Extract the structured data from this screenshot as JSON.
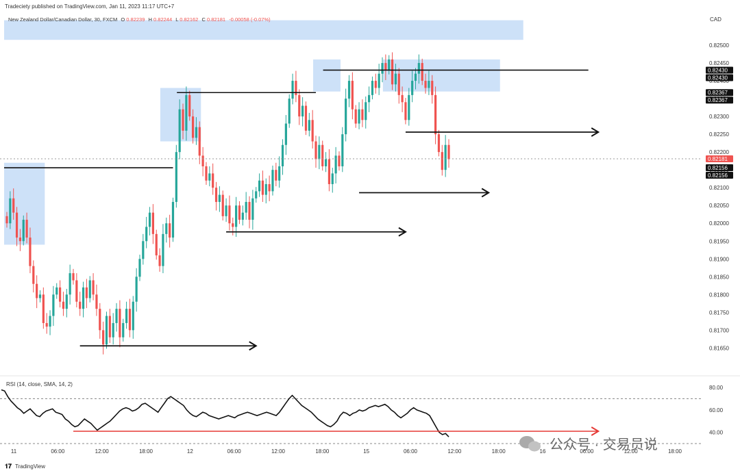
{
  "header": {
    "published": "Tradeciety published on TradingView.com, Jan 11, 2023 11:17 UTC+7",
    "symbol_line": "New Zealand Dollar/Canadian Dollar, 30, FXCM",
    "o_label": "O",
    "o_value": "0.82239",
    "h_label": "H",
    "h_value": "0.82244",
    "l_label": "L",
    "l_value": "0.82162",
    "c_label": "C",
    "c_value": "0.82181",
    "change": "-0.00058 (-0.07%)"
  },
  "currency": "CAD",
  "footer_brand": "TradingView",
  "watermark": "公众号 · 交易员说",
  "colors": {
    "up": "#26a69a",
    "down": "#ef5350",
    "zone": "#bcd7f5",
    "line": "#111111",
    "rsi": "#111111",
    "rsi_trend": "#e53935",
    "price_badge": "#ef5350",
    "level_badge": "#111111"
  },
  "chart_data": [
    {
      "type": "candlestick",
      "y_range": [
        0.8162,
        0.8255
      ],
      "y_ticks": [
        "0.82500",
        "0.82450",
        "0.82400",
        "0.82350",
        "0.82300",
        "0.82250",
        "0.82200",
        "0.82150",
        "0.82100",
        "0.82050",
        "0.82000",
        "0.81950",
        "0.81900",
        "0.81850",
        "0.81800",
        "0.81750",
        "0.81700",
        "0.81650"
      ],
      "y_tick_values": [
        0.825,
        0.8245,
        0.824,
        0.8235,
        0.823,
        0.8225,
        0.822,
        0.8215,
        0.821,
        0.8205,
        0.82,
        0.8195,
        0.819,
        0.8185,
        0.818,
        0.8175,
        0.817,
        0.8165
      ],
      "x_labels": [
        "11",
        "06:00",
        "12:00",
        "18:00",
        "12",
        "06:00",
        "12:00",
        "18:00",
        "15",
        "06:00",
        "12:00",
        "18:00",
        "16",
        "06:00",
        "12:00",
        "18:00"
      ],
      "price_badges": [
        {
          "text": "0.82430",
          "value": 0.8243,
          "kind": "level"
        },
        {
          "text": "0.82430",
          "value": 0.8243,
          "kind": "level"
        },
        {
          "text": "0.82367",
          "value": 0.82367,
          "kind": "level"
        },
        {
          "text": "0.82367",
          "value": 0.82367,
          "kind": "level"
        },
        {
          "text": "0.82181",
          "value": 0.82181,
          "kind": "price"
        },
        {
          "text": "0.82156",
          "value": 0.82156,
          "kind": "level"
        },
        {
          "text": "0.82156",
          "value": 0.82156,
          "kind": "level"
        }
      ],
      "closes": [
        0.82,
        0.8207,
        0.8203,
        0.8196,
        0.8195,
        0.8201,
        0.8196,
        0.8188,
        0.8183,
        0.8179,
        0.818,
        0.8172,
        0.8171,
        0.8174,
        0.818,
        0.8182,
        0.8178,
        0.8176,
        0.818,
        0.8186,
        0.8184,
        0.8178,
        0.8176,
        0.8182,
        0.8179,
        0.8184,
        0.818,
        0.8176,
        0.817,
        0.8166,
        0.8174,
        0.8168,
        0.8172,
        0.8176,
        0.8168,
        0.8172,
        0.8176,
        0.817,
        0.8178,
        0.8185,
        0.819,
        0.8195,
        0.8199,
        0.8203,
        0.8197,
        0.8191,
        0.8188,
        0.8197,
        0.82,
        0.8196,
        0.8206,
        0.822,
        0.8232,
        0.8226,
        0.8236,
        0.823,
        0.8224,
        0.8227,
        0.8219,
        0.8216,
        0.8212,
        0.8214,
        0.821,
        0.8206,
        0.8208,
        0.8202,
        0.8205,
        0.82,
        0.8199,
        0.8205,
        0.8201,
        0.8203,
        0.8206,
        0.8201,
        0.8207,
        0.8209,
        0.8212,
        0.8208,
        0.8211,
        0.8209,
        0.8215,
        0.8212,
        0.8216,
        0.8222,
        0.8228,
        0.8235,
        0.824,
        0.8236,
        0.823,
        0.8233,
        0.8226,
        0.8229,
        0.8223,
        0.8218,
        0.8222,
        0.8216,
        0.8218,
        0.8211,
        0.8214,
        0.8219,
        0.8216,
        0.8225,
        0.8235,
        0.824,
        0.8232,
        0.8228,
        0.8232,
        0.8229,
        0.8234,
        0.8236,
        0.824,
        0.8238,
        0.8242,
        0.8245,
        0.8243,
        0.8246,
        0.8239,
        0.8242,
        0.8236,
        0.8234,
        0.8229,
        0.8236,
        0.824,
        0.8242,
        0.8245,
        0.824,
        0.8238,
        0.824,
        0.8236,
        0.8225,
        0.822,
        0.8215,
        0.8222,
        0.8218
      ],
      "horizontal_lines": [
        {
          "from_bar": 0,
          "to_bar": 50,
          "value": 0.82156
        },
        {
          "from_bar": 52,
          "to_bar": 93,
          "value": 0.82367
        },
        {
          "from_bar": 96,
          "to_bar": 175,
          "value": 0.8243
        }
      ],
      "arrows": [
        {
          "from_bar": 22,
          "to_bar": 75,
          "value": 0.81656
        },
        {
          "from_bar": 66,
          "to_bar": 120,
          "value": 0.81976
        },
        {
          "from_bar": 106,
          "to_bar": 145,
          "value": 0.82086
        },
        {
          "from_bar": 120,
          "to_bar": 178,
          "value": 0.82256
        }
      ],
      "zones": [
        {
          "from_bar": 0,
          "to_bar": 11,
          "top": 0.8217,
          "bottom": 0.8194
        },
        {
          "from_bar": 47,
          "to_bar": 58,
          "top": 0.8238,
          "bottom": 0.8223
        },
        {
          "from_bar": 93,
          "to_bar": 100,
          "top": 0.8246,
          "bottom": 0.8237
        },
        {
          "from_bar": 114,
          "to_bar": 148,
          "top": 0.8246,
          "bottom": 0.8237
        },
        {
          "from_bar": 0,
          "to_bar": 155,
          "top": 0.8257,
          "bottom": 0.82515
        }
      ]
    },
    {
      "type": "line",
      "title": "RSI (14, close, SMA, 14, 2)",
      "y_range": [
        30,
        85
      ],
      "y_ticks": [
        "80.00",
        "60.00",
        "40.00"
      ],
      "y_tick_values": [
        80,
        60,
        40
      ],
      "levels": [
        70,
        30
      ],
      "values": [
        78,
        77,
        72,
        68,
        65,
        62,
        60,
        57,
        59,
        61,
        58,
        55,
        54,
        57,
        59,
        60,
        61,
        58,
        57,
        56,
        52,
        50,
        47,
        45,
        46,
        49,
        52,
        50,
        48,
        45,
        42,
        44,
        46,
        48,
        50,
        53,
        56,
        59,
        61,
        62,
        61,
        59,
        60,
        62,
        65,
        66,
        64,
        62,
        60,
        58,
        62,
        66,
        70,
        72,
        70,
        68,
        66,
        64,
        60,
        57,
        55,
        54,
        56,
        58,
        57,
        55,
        54,
        53,
        52,
        53,
        54,
        55,
        54,
        53,
        55,
        56,
        57,
        58,
        57,
        56,
        55,
        56,
        57,
        58,
        57,
        56,
        55,
        58,
        62,
        66,
        70,
        73,
        70,
        67,
        64,
        62,
        60,
        58,
        55,
        52,
        50,
        48,
        46,
        45,
        47,
        50,
        55,
        58,
        57,
        55,
        57,
        58,
        60,
        59,
        60,
        62,
        63,
        64,
        63,
        64,
        65,
        63,
        60,
        58,
        55,
        53,
        55,
        57,
        60,
        62,
        60,
        59,
        58,
        57,
        55,
        50,
        45,
        40,
        38,
        39,
        36
      ],
      "trendline": {
        "from_bar": 20,
        "to_bar": 178,
        "value": 41
      }
    }
  ]
}
